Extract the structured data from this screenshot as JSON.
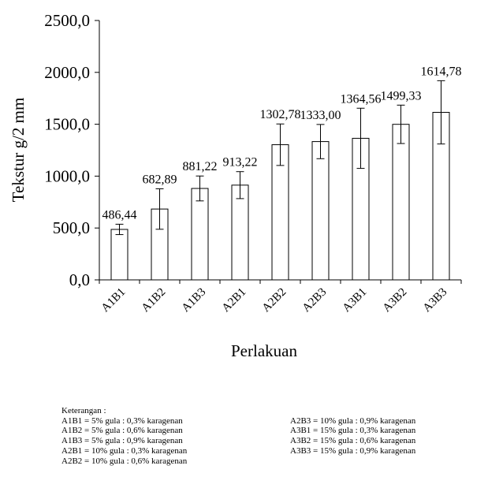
{
  "chart_data": {
    "type": "bar",
    "categories": [
      "A1B1",
      "A1B2",
      "A1B3",
      "A2B1",
      "A2B2",
      "A2B3",
      "A3B1",
      "A3B2",
      "A3B3"
    ],
    "values": [
      486.44,
      682.89,
      881.22,
      913.22,
      1302.78,
      1333.0,
      1364.56,
      1499.33,
      1614.78
    ],
    "value_labels": [
      "486,44",
      "682,89",
      "881,22",
      "913,22",
      "1302,78",
      "1333,00",
      "1364,56",
      "1499,33",
      "1614,78"
    ],
    "error": [
      50,
      195,
      120,
      130,
      200,
      165,
      290,
      185,
      305
    ],
    "ylabel": "Tekstur g/2 mm",
    "xlabel": "Perlakuan",
    "ylim": [
      0,
      2500
    ],
    "yticks": [
      0,
      500,
      1000,
      1500,
      2000,
      2500
    ],
    "ytick_labels": [
      "0,0",
      "500,0",
      "1000,0",
      "1500,0",
      "2000,0",
      "2500,0"
    ],
    "grid": false
  },
  "legend": {
    "title": "Keterangan :",
    "col1": [
      "A1B1 = 5% gula : 0,3% karagenan",
      "A1B2 = 5% gula : 0,6% karagenan",
      "A1B3 = 5% gula : 0,9% karagenan",
      "A2B1 = 10% gula : 0,3% karagenan",
      "A2B2 = 10% gula : 0,6% karagenan"
    ],
    "col2": [
      "A2B3 = 10% gula : 0,9% karagenan",
      "A3B1 = 15% gula : 0,3% karagenan",
      "A3B2 = 15% gula : 0,6% karagenan",
      "A3B3 = 15% gula : 0,9% karagenan"
    ]
  }
}
